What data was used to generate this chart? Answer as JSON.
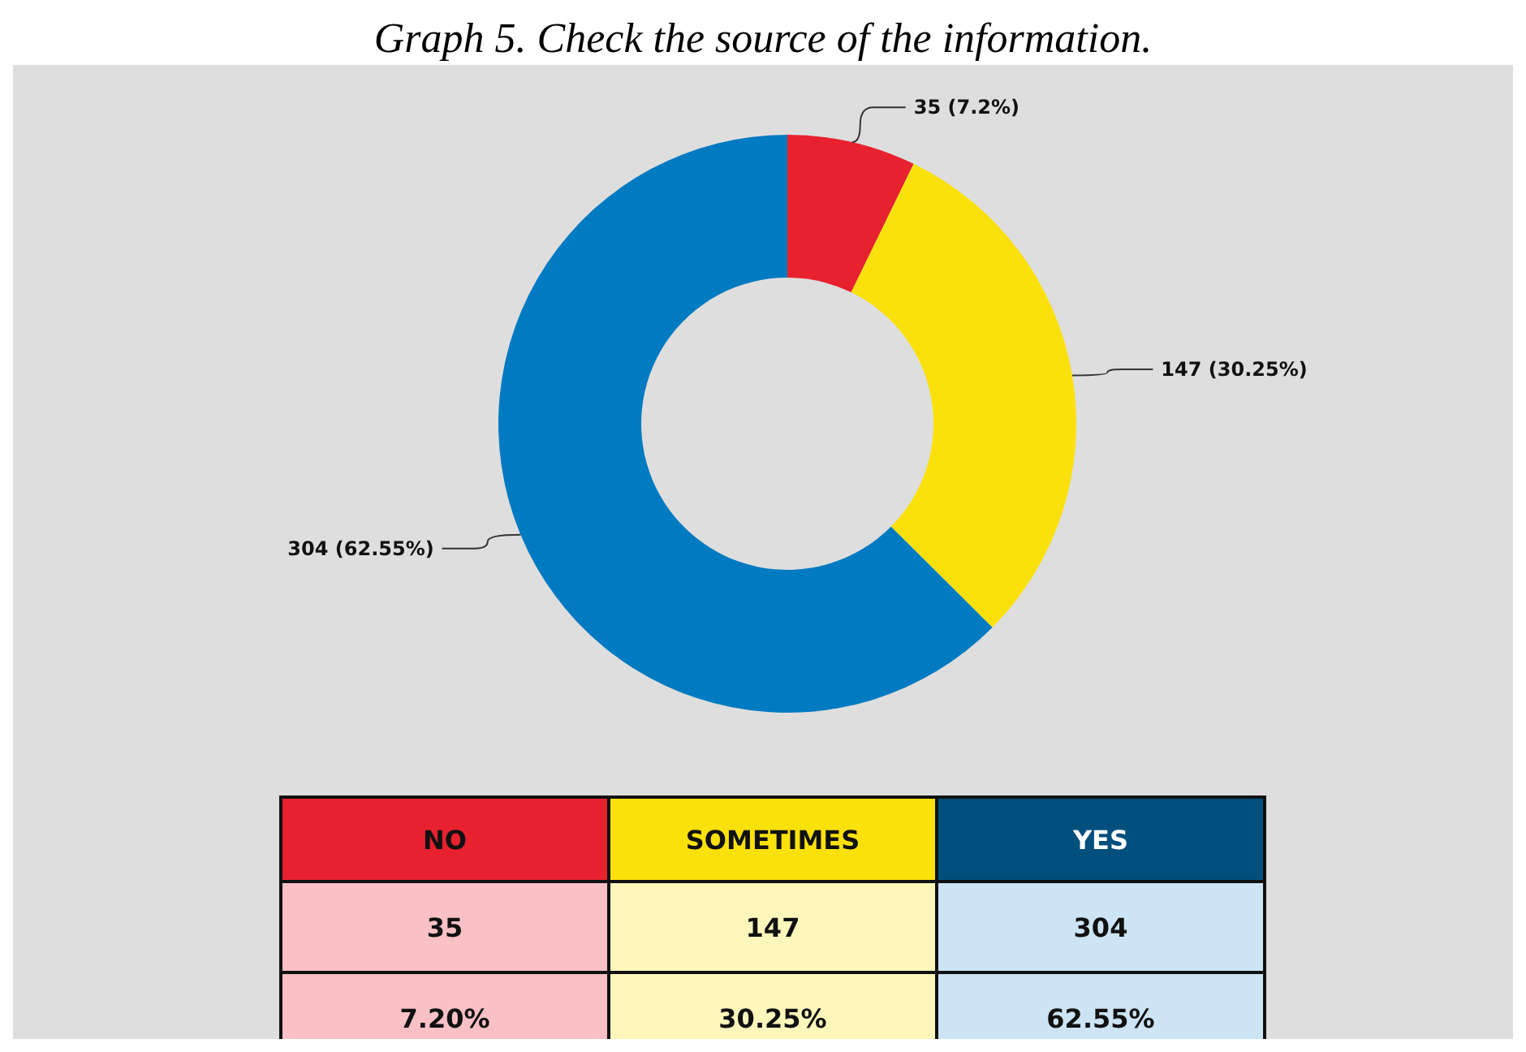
{
  "chart_data": [
    {
      "type": "donut",
      "title": "Graph 5. Check the source of the information.",
      "categories": [
        null,
        null,
        null
      ],
      "values": [
        35,
        147,
        304
      ],
      "colors": [
        "#e8212f",
        "#fbe10c",
        "#007ac1"
      ],
      "value_labels": [
        "35 (7.2%)",
        "147 (30.25%)",
        "304 (62.55%)"
      ]
    },
    {
      "type": "other",
      "annotations": [
        "NO",
        "SOMETIMES",
        "YES",
        "35",
        "147",
        "304",
        "7.20%",
        "30.25%",
        "62.55%"
      ]
    }
  ]
}
